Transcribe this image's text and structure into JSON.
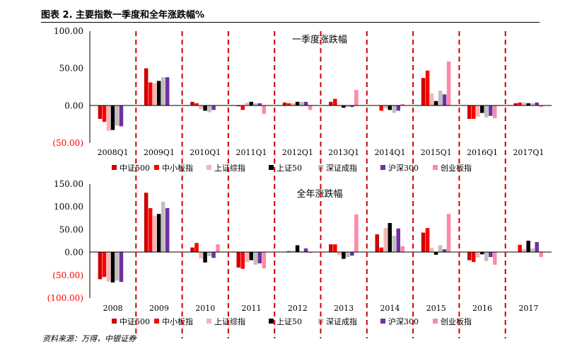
{
  "figure_title": "图表 2. 主要指数一季度和全年涨跌幅%",
  "source": "资料来源：万得，中银证券",
  "legend": [
    "中证500",
    "中小板指",
    "上证综指",
    "上证50",
    "深证成指",
    "沪深300",
    "创业板指"
  ],
  "colors": {
    "series": [
      "#cc0000",
      "#ff0000",
      "#f4b6b6",
      "#000000",
      "#bfbfbf",
      "#7030a0",
      "#ff88aa"
    ],
    "divider": "#cc0000",
    "negative_tick": "#ff0000"
  },
  "chart_data": [
    {
      "type": "bar",
      "title": "一季度涨跌幅",
      "categories": [
        "2008Q1",
        "2009Q1",
        "2010Q1",
        "2011Q1",
        "2012Q1",
        "2013Q1",
        "2014Q1",
        "2015Q1",
        "2016Q1",
        "2017Q1"
      ],
      "ylim": [
        -50,
        100
      ],
      "yticks": [
        "100.00",
        "50.00",
        "0.00",
        "(50.00)"
      ],
      "series": [
        {
          "name": "中证500",
          "values": [
            -18,
            50,
            5,
            -1,
            4,
            5,
            0,
            37,
            -18,
            3
          ]
        },
        {
          "name": "中小板指",
          "values": [
            -22,
            31,
            3,
            -6,
            3,
            9,
            -7,
            47,
            -18,
            4
          ]
        },
        {
          "name": "上证综指",
          "values": [
            -34,
            30,
            -5,
            4,
            3,
            -1,
            -4,
            16,
            -15,
            4
          ]
        },
        {
          "name": "上证50",
          "values": [
            -33,
            33,
            -7,
            5,
            5,
            -3,
            -6,
            6,
            -10,
            3
          ]
        },
        {
          "name": "深证成指",
          "values": [
            -27,
            38,
            -9,
            3,
            5,
            -2,
            -10,
            20,
            -16,
            3
          ]
        },
        {
          "name": "沪深300",
          "values": [
            -28,
            38,
            -6,
            3,
            5,
            -2,
            -7,
            15,
            -14,
            4
          ]
        },
        {
          "name": "创业板指",
          "values": [
            0,
            0,
            0,
            -11,
            -6,
            21,
            2,
            59,
            -17,
            -2
          ]
        }
      ]
    },
    {
      "type": "bar",
      "title": "全年涨跌幅",
      "categories": [
        "2008",
        "2009",
        "2010",
        "2011",
        "2012",
        "2013",
        "2014",
        "2015",
        "2016",
        "2017"
      ],
      "ylim": [
        -100,
        150
      ],
      "yticks": [
        "150.00",
        "100.00",
        "50.00",
        "0.00",
        "(50.00)",
        "(100.00)"
      ],
      "series": [
        {
          "name": "中证500",
          "values": [
            -60,
            131,
            10,
            -34,
            0,
            17,
            39,
            43,
            -18,
            0
          ]
        },
        {
          "name": "中小板指",
          "values": [
            -55,
            97,
            20,
            -37,
            2,
            17,
            10,
            53,
            -22,
            16
          ]
        },
        {
          "name": "上证综指",
          "values": [
            -65,
            80,
            -14,
            -22,
            3,
            -7,
            53,
            9,
            -12,
            7
          ]
        },
        {
          "name": "上证50",
          "values": [
            -67,
            84,
            -23,
            -18,
            15,
            -15,
            64,
            -6,
            -5,
            25
          ]
        },
        {
          "name": "深证成指",
          "values": [
            -63,
            111,
            -9,
            -28,
            2,
            -11,
            36,
            15,
            -20,
            8
          ]
        },
        {
          "name": "沪深300",
          "values": [
            -66,
            97,
            -13,
            -25,
            8,
            -8,
            52,
            6,
            -11,
            22
          ]
        },
        {
          "name": "创业板指",
          "values": [
            0,
            0,
            17,
            -36,
            -2,
            83,
            13,
            84,
            -28,
            -11
          ]
        }
      ]
    }
  ]
}
